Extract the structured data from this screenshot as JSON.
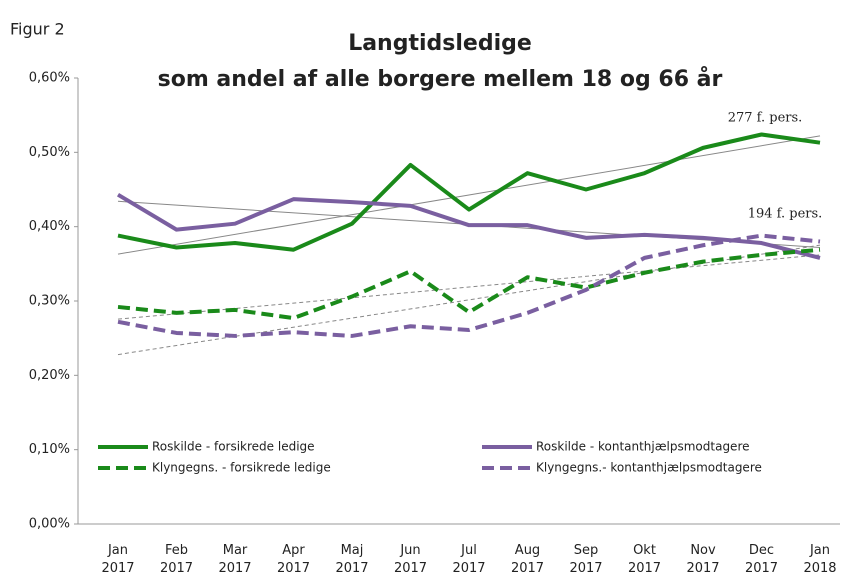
{
  "chart_data": {
    "type": "line",
    "figure_label": "Figur 2",
    "title": "Langtidsledige",
    "subtitle": "som andel af alle borgere mellem 18 og 66 år",
    "categories": [
      "Jan 2017",
      "Feb 2017",
      "Mar 2017",
      "Apr 2017",
      "Maj 2017",
      "Jun 2017",
      "Jul 2017",
      "Aug 2017",
      "Sep 2017",
      "Okt 2017",
      "Nov 2017",
      "Dec 2017",
      "Jan 2018"
    ],
    "series": [
      {
        "name": "Roskilde - forsikrede ledige",
        "color": "#1a8a1a",
        "dashed": false,
        "values": [
          0.388,
          0.372,
          0.378,
          0.369,
          0.404,
          0.483,
          0.423,
          0.472,
          0.45,
          0.472,
          0.506,
          0.524,
          0.513
        ]
      },
      {
        "name": "Roskilde - kontanthjælpsmodtagere",
        "color": "#7a5fa0",
        "dashed": false,
        "values": [
          0.443,
          0.396,
          0.404,
          0.437,
          0.433,
          0.428,
          0.402,
          0.402,
          0.385,
          0.389,
          0.385,
          0.378,
          0.358
        ]
      },
      {
        "name": "Klyngegns. - forsikrede ledige",
        "color": "#1a8a1a",
        "dashed": true,
        "values": [
          0.292,
          0.284,
          0.288,
          0.277,
          0.306,
          0.34,
          0.285,
          0.332,
          0.318,
          0.338,
          0.353,
          0.362,
          0.369
        ]
      },
      {
        "name": "Klyngegns.- kontanthjælpsmodtagere",
        "color": "#7a5fa0",
        "dashed": true,
        "values": [
          0.272,
          0.257,
          0.253,
          0.258,
          0.253,
          0.266,
          0.261,
          0.284,
          0.315,
          0.358,
          0.375,
          0.388,
          0.38
        ]
      }
    ],
    "trendlines": true,
    "annotations": [
      "277 f. pers.",
      "194 f. pers."
    ],
    "ylim": [
      0,
      0.6
    ],
    "yticks": [
      {
        "value": 0,
        "label": "0,00%"
      },
      {
        "value": 0.1,
        "label": "0,10%"
      },
      {
        "value": 0.2,
        "label": "0,20%"
      },
      {
        "value": 0.3,
        "label": "0,30%"
      },
      {
        "value": 0.4,
        "label": "0,40%"
      },
      {
        "value": 0.5,
        "label": "0,50%"
      },
      {
        "value": 0.6,
        "label": "0,60%"
      }
    ],
    "grid": false
  }
}
